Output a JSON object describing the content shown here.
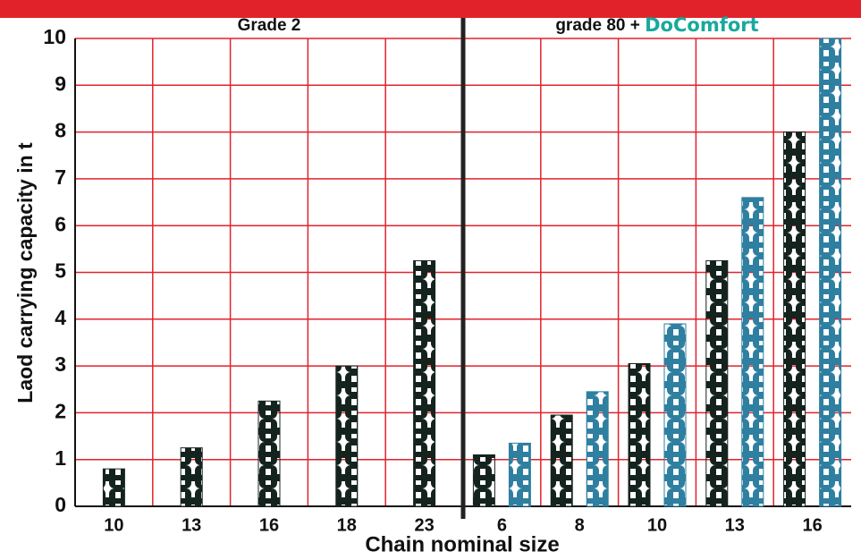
{
  "chart_data": {
    "type": "bar",
    "y_label": "Laod carrying capacity in t",
    "x_label": "Chain nominal size",
    "ylim": [
      0,
      10
    ],
    "yticks": [
      0,
      1,
      2,
      3,
      4,
      5,
      6,
      7,
      8,
      9,
      10
    ],
    "grid": true,
    "grid_color": "#e2222b",
    "groups": [
      {
        "title": "Grade 2",
        "categories": [
          "10",
          "13",
          "16",
          "18",
          "23"
        ],
        "series": [
          {
            "color": "#15231f",
            "values": [
              0.8,
              1.25,
              2.25,
              3.0,
              5.25
            ]
          }
        ]
      },
      {
        "title": "grade 80 +",
        "categories": [
          "6",
          "8",
          "10",
          "13",
          "16"
        ],
        "series": [
          {
            "color": "#15231f",
            "values": [
              1.1,
              1.95,
              3.05,
              5.25,
              8.0
            ]
          },
          {
            "name": "DoComfort",
            "color": "#2f7fa0",
            "values": [
              1.35,
              2.45,
              3.9,
              6.6,
              10.0
            ]
          }
        ]
      }
    ]
  }
}
